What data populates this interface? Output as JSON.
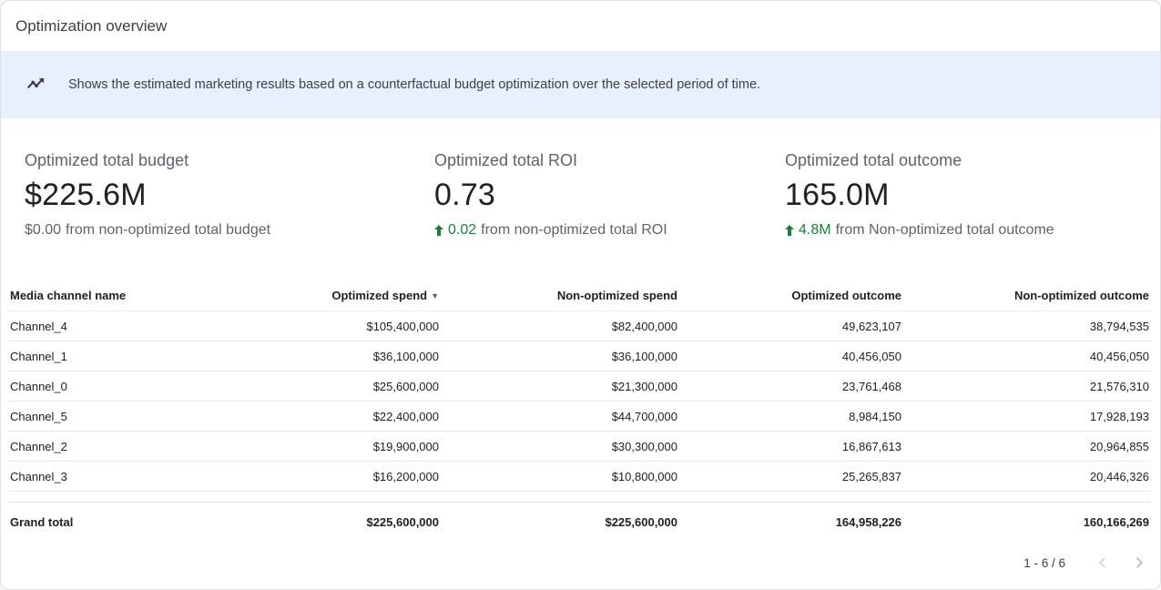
{
  "header": {
    "title": "Optimization overview"
  },
  "banner": {
    "icon": "trend-line-icon",
    "text": "Shows the estimated marketing results based on a counterfactual budget optimization over the selected period of time."
  },
  "kpis": {
    "budget": {
      "label": "Optimized total budget",
      "value": "$225.6M",
      "delta_value": "$0.00",
      "delta_text": "from non-optimized total budget"
    },
    "roi": {
      "label": "Optimized total ROI",
      "value": "0.73",
      "delta_value": "0.02",
      "delta_text": "from non-optimized total ROI"
    },
    "outcome": {
      "label": "Optimized total outcome",
      "value": "165.0M",
      "delta_value": "4.8M",
      "delta_text": "from Non-optimized total outcome"
    }
  },
  "table": {
    "sort_indicator": "▼",
    "columns": [
      {
        "label": "Media channel name"
      },
      {
        "label": "Optimized spend",
        "sorted": "desc"
      },
      {
        "label": "Non-optimized spend"
      },
      {
        "label": "Optimized outcome"
      },
      {
        "label": "Non-optimized outcome"
      }
    ],
    "rows": [
      [
        "Channel_4",
        "$105,400,000",
        "$82,400,000",
        "49,623,107",
        "38,794,535"
      ],
      [
        "Channel_1",
        "$36,100,000",
        "$36,100,000",
        "40,456,050",
        "40,456,050"
      ],
      [
        "Channel_0",
        "$25,600,000",
        "$21,300,000",
        "23,761,468",
        "21,576,310"
      ],
      [
        "Channel_5",
        "$22,400,000",
        "$44,700,000",
        "8,984,150",
        "17,928,193"
      ],
      [
        "Channel_2",
        "$19,900,000",
        "$30,300,000",
        "16,867,613",
        "20,964,855"
      ],
      [
        "Channel_3",
        "$16,200,000",
        "$10,800,000",
        "25,265,837",
        "20,446,326"
      ]
    ],
    "grand_total": [
      "Grand total",
      "$225,600,000",
      "$225,600,000",
      "164,958,226",
      "160,166,269"
    ]
  },
  "pagination": {
    "range": "1 - 6 / 6"
  },
  "colors": {
    "positive": "#188038",
    "banner_bg": "#e8f0fe"
  }
}
